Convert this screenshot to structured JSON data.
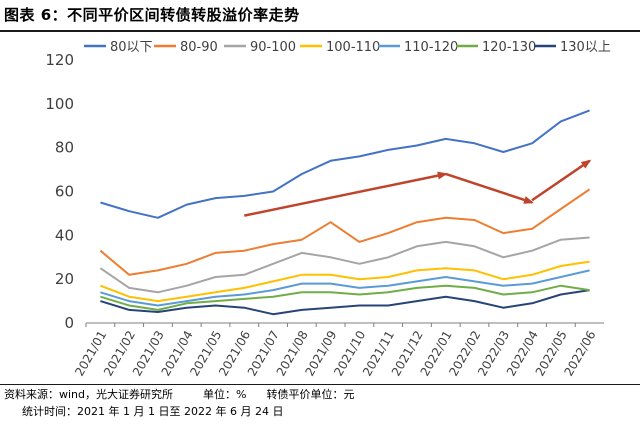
{
  "figure_title": "图表 6：不同平价区间转债转股溢价率走势",
  "source_label": "资料来源：wind，光大证券研究所",
  "unit_label": "单位：%",
  "parity_unit_label": "转债平价单位：元",
  "period_label": "统计时间：2021 年 1 月 1 日至 2022 年 6 月 24 日",
  "chart_data": {
    "type": "line",
    "x": [
      "2021/01",
      "2021/02",
      "2021/03",
      "2021/04",
      "2021/05",
      "2021/06",
      "2021/07",
      "2021/08",
      "2021/09",
      "2021/10",
      "2021/11",
      "2021/12",
      "2022/01",
      "2022/02",
      "2022/03",
      "2022/04",
      "2022/05",
      "2022/06"
    ],
    "x_tick_labels": [
      "2021/01",
      "2021/02",
      "2021/03",
      "2021/04",
      "2021/05",
      "2021/06",
      "2021/07",
      "2021/08",
      "2021/09",
      "2021/10",
      "2021/11",
      "2021/12",
      "2022/01",
      "2022/02",
      "2022/03",
      "2022/04",
      "2022/05",
      "2022/06"
    ],
    "y_tick_labels": [
      "0",
      "20",
      "40",
      "60",
      "80",
      "100",
      "120"
    ],
    "ylim": [
      0,
      120
    ],
    "grid": false,
    "legend_position": "top",
    "series": [
      {
        "name": "80以下",
        "color": "#4472C4",
        "values": [
          55,
          51,
          48,
          54,
          57,
          58,
          60,
          68,
          74,
          76,
          79,
          81,
          84,
          82,
          78,
          82,
          92,
          97
        ]
      },
      {
        "name": "80-90",
        "color": "#ED7D31",
        "values": [
          33,
          22,
          24,
          27,
          32,
          33,
          36,
          38,
          46,
          37,
          41,
          46,
          48,
          47,
          41,
          43,
          52,
          61
        ]
      },
      {
        "name": "90-100",
        "color": "#A5A5A5",
        "values": [
          25,
          16,
          14,
          17,
          21,
          22,
          27,
          32,
          30,
          27,
          30,
          35,
          37,
          35,
          30,
          33,
          38,
          39
        ]
      },
      {
        "name": "100-110",
        "color": "#FFC000",
        "values": [
          17,
          12,
          10,
          12,
          14,
          16,
          19,
          22,
          22,
          20,
          21,
          24,
          25,
          24,
          20,
          22,
          26,
          28
        ]
      },
      {
        "name": "110-120",
        "color": "#5B9BD5",
        "values": [
          14,
          10,
          8,
          10,
          12,
          13,
          15,
          18,
          18,
          16,
          17,
          19,
          21,
          19,
          17,
          18,
          21,
          24
        ]
      },
      {
        "name": "120-130",
        "color": "#70AD47",
        "values": [
          12,
          8,
          6,
          9,
          10,
          11,
          12,
          14,
          14,
          13,
          14,
          16,
          17,
          16,
          13,
          14,
          17,
          15
        ]
      },
      {
        "name": "130以上",
        "color": "#264478",
        "values": [
          10,
          6,
          5,
          7,
          8,
          7,
          4,
          6,
          7,
          8,
          8,
          10,
          12,
          10,
          7,
          9,
          13,
          15
        ]
      }
    ],
    "annotations": [
      {
        "type": "arrow",
        "color": "#C0432B",
        "from": [
          "2021/06",
          49
        ],
        "to": [
          "2022/01",
          68
        ]
      },
      {
        "type": "arrow",
        "color": "#C0432B",
        "from": [
          "2022/01",
          68
        ],
        "to": [
          "2022/04",
          55
        ]
      },
      {
        "type": "arrow",
        "color": "#C0432B",
        "from": [
          "2022/04",
          56
        ],
        "to": [
          "2022/06",
          74
        ]
      }
    ]
  }
}
